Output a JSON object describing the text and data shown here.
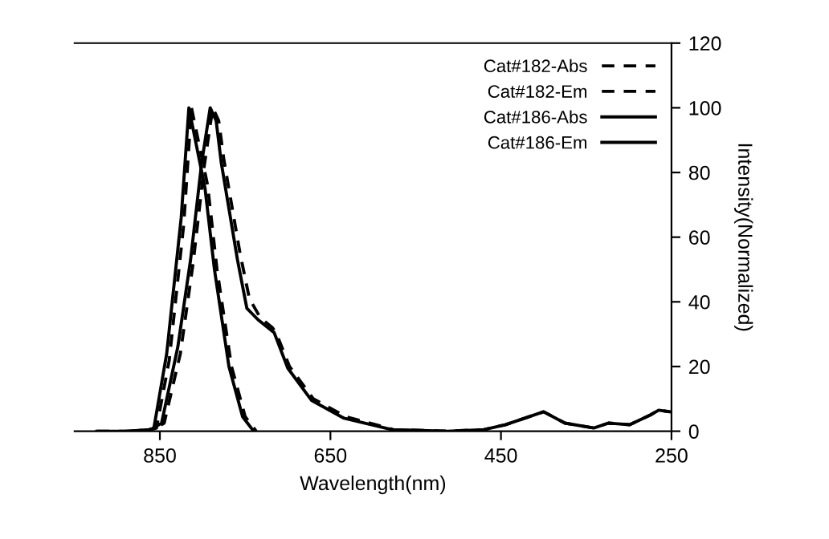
{
  "chart_data": {
    "type": "line",
    "xlabel": "Wavelength(nm)",
    "ylabel": "Intensity(Normalized)",
    "xlim": [
      950,
      250
    ],
    "ylim": [
      0,
      120
    ],
    "xticks": [
      850,
      650,
      450,
      250
    ],
    "yticks": [
      0,
      20,
      40,
      60,
      80,
      100,
      120
    ],
    "grid": false,
    "legend": "top right",
    "marker": "none",
    "series": [
      {
        "name": "Cat#182-Abs",
        "color": "#000000",
        "line_style": "dashed",
        "x": [
          924,
          870,
          858,
          845,
          826,
          811,
          798,
          788,
          781,
          775,
          756,
          745,
          732,
          718,
          713,
          698,
          670,
          632,
          576,
          513,
          470,
          445,
          400,
          375,
          341,
          324,
          299,
          275,
          265,
          252
        ],
        "values": [
          0,
          0,
          0.5,
          2.5,
          24,
          52,
          82,
          100,
          96,
          84,
          55,
          41,
          35,
          32,
          30,
          20,
          10,
          4.5,
          0.5,
          0,
          0.5,
          2,
          6,
          2.5,
          1,
          2.5,
          2,
          5,
          6.5,
          6
        ]
      },
      {
        "name": "Cat#182-Em",
        "color": "#000000",
        "line_style": "dashed",
        "x": [
          885,
          860,
          854,
          839,
          822,
          813,
          794,
          783,
          766,
          750,
          737
        ],
        "values": [
          0,
          0.5,
          1,
          22,
          64,
          100,
          76,
          50,
          20,
          4.5,
          0
        ]
      },
      {
        "name": "Cat#186-Abs",
        "color": "#000000",
        "line_style": "solid",
        "x": [
          924,
          870,
          861,
          848,
          829,
          814,
          801,
          791,
          784,
          778,
          759,
          748,
          735,
          716,
          700,
          672,
          634,
          578,
          513,
          470,
          445,
          400,
          375,
          341,
          324,
          299,
          275,
          265,
          252
        ],
        "values": [
          0,
          0,
          0.5,
          2.5,
          26,
          53,
          83,
          100,
          96,
          83,
          53,
          38,
          34.5,
          30.5,
          19.5,
          9.5,
          4,
          0.5,
          0,
          0.5,
          2,
          6,
          2.5,
          1,
          2.5,
          2,
          5,
          6.5,
          6
        ]
      },
      {
        "name": "Cat#186-Em",
        "color": "#000000",
        "line_style": "solid",
        "x": [
          888,
          863,
          857,
          842,
          825,
          816,
          797,
          786,
          769,
          753,
          740
        ],
        "values": [
          0,
          0.5,
          1,
          24,
          66,
          100,
          75,
          50,
          20,
          4.5,
          0
        ]
      }
    ]
  }
}
